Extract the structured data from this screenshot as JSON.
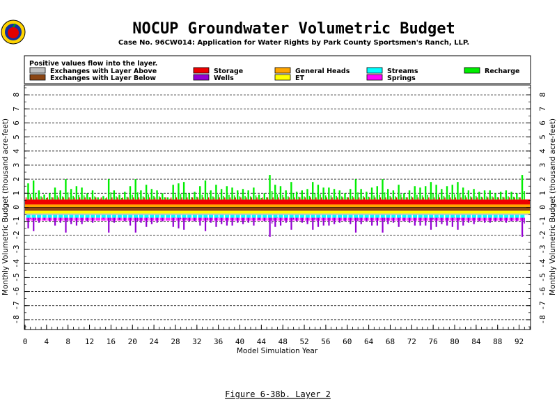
{
  "chart_data": {
    "type": "bar",
    "title": "NOCUP Groundwater Volumetric Budget",
    "subtitle": "Case No. 96CW014: Application for Water Rights by Park County Sportsmen's Ranch, LLP.",
    "legend_title": "Positive values flow into the layer.",
    "xlabel": "Model Simulation Year",
    "ylabel": "Monthly Volumetric Budget (thousand acre-feet)",
    "xlim": [
      0,
      94
    ],
    "ylim": [
      -8.5,
      8.5
    ],
    "x_ticks": [
      0,
      4,
      8,
      12,
      16,
      20,
      24,
      28,
      32,
      36,
      40,
      44,
      48,
      52,
      56,
      60,
      64,
      68,
      72,
      76,
      80,
      84,
      88,
      92
    ],
    "y_ticks": [
      -8,
      -7,
      -6,
      -5,
      -4,
      -3,
      -2,
      -1,
      0,
      1,
      2,
      3,
      4,
      5,
      6,
      7,
      8
    ],
    "grid": "horizontal dashed",
    "legend_position": "top",
    "series": [
      {
        "name": "Exchanges with Layer Above",
        "color": "#c0c0c0"
      },
      {
        "name": "Exchanges with Layer Below",
        "color": "#8b4513"
      },
      {
        "name": "Storage",
        "color": "#ee0000"
      },
      {
        "name": "Wells",
        "color": "#9400d3"
      },
      {
        "name": "General Heads",
        "color": "#ffa500"
      },
      {
        "name": "ET",
        "color": "#ffff00"
      },
      {
        "name": "Streams",
        "color": "#00ffff"
      },
      {
        "name": "Springs",
        "color": "#ff00ff"
      },
      {
        "name": "Recharge",
        "color": "#00ee00"
      }
    ],
    "annual_peaks": {
      "years": [
        1,
        2,
        3,
        4,
        5,
        6,
        7,
        8,
        9,
        10,
        11,
        12,
        13,
        14,
        15,
        16,
        17,
        18,
        19,
        20,
        21,
        22,
        23,
        24,
        25,
        26,
        27,
        28,
        29,
        30,
        31,
        32,
        33,
        34,
        35,
        36,
        37,
        38,
        39,
        40,
        41,
        42,
        43,
        44,
        45,
        46,
        47,
        48,
        49,
        50,
        51,
        52,
        53,
        54,
        55,
        56,
        57,
        58,
        59,
        60,
        61,
        62,
        63,
        64,
        65,
        66,
        67,
        68,
        69,
        70,
        71,
        72,
        73,
        74,
        75,
        76,
        77,
        78,
        79,
        80,
        81,
        82,
        83,
        84,
        85,
        86,
        87,
        88,
        89,
        90,
        91,
        92,
        93
      ],
      "recharge": [
        1.7,
        1.9,
        1.2,
        0.9,
        1.0,
        1.4,
        1.2,
        2.0,
        1.3,
        1.5,
        1.4,
        1.0,
        1.2,
        0.7,
        0.8,
        2.0,
        1.2,
        0.9,
        1.1,
        1.5,
        2.0,
        1.2,
        1.6,
        1.3,
        1.2,
        1.0,
        0.7,
        1.6,
        1.7,
        1.8,
        1.0,
        1.1,
        1.5,
        1.9,
        1.2,
        1.6,
        1.3,
        1.5,
        1.4,
        1.2,
        1.3,
        1.2,
        1.4,
        0.9,
        1.0,
        2.3,
        1.6,
        1.5,
        1.2,
        1.8,
        1.1,
        1.2,
        1.3,
        1.8,
        1.6,
        1.4,
        1.4,
        1.3,
        1.2,
        1.0,
        1.3,
        2.0,
        1.3,
        1.1,
        1.4,
        1.5,
        2.0,
        1.3,
        1.2,
        1.6,
        1.0,
        1.2,
        1.5,
        1.4,
        1.5,
        1.8,
        1.6,
        1.3,
        1.5,
        1.6,
        1.8,
        1.4,
        1.2,
        1.3,
        1.1,
        1.2,
        1.2,
        1.0,
        1.1,
        1.2,
        1.1,
        1.0,
        2.3
      ],
      "wells": [
        -1.5,
        -1.7,
        -1.1,
        -0.9,
        -1.0,
        -1.3,
        -1.1,
        -1.8,
        -1.2,
        -1.3,
        -1.2,
        -1.0,
        -1.1,
        -0.7,
        -0.8,
        -1.8,
        -1.1,
        -0.9,
        -1.0,
        -1.3,
        -1.8,
        -1.1,
        -1.4,
        -1.2,
        -1.1,
        -1.0,
        -0.7,
        -1.4,
        -1.5,
        -1.6,
        -1.0,
        -1.0,
        -1.3,
        -1.7,
        -1.1,
        -1.4,
        -1.2,
        -1.3,
        -1.3,
        -1.1,
        -1.2,
        -1.1,
        -1.3,
        -0.9,
        -1.0,
        -2.1,
        -1.4,
        -1.3,
        -1.1,
        -1.6,
        -1.0,
        -1.1,
        -1.2,
        -1.6,
        -1.4,
        -1.3,
        -1.3,
        -1.2,
        -1.1,
        -1.0,
        -1.2,
        -1.8,
        -1.2,
        -1.0,
        -1.3,
        -1.3,
        -1.8,
        -1.2,
        -1.1,
        -1.4,
        -1.0,
        -1.1,
        -1.3,
        -1.3,
        -1.3,
        -1.6,
        -1.4,
        -1.2,
        -1.3,
        -1.4,
        -1.6,
        -1.3,
        -1.1,
        -1.2,
        -1.0,
        -1.1,
        -1.1,
        -1.0,
        -1.0,
        -1.1,
        -1.0,
        -1.0,
        -2.1
      ]
    },
    "caption": "Figure 6-38b.  Layer 2"
  }
}
